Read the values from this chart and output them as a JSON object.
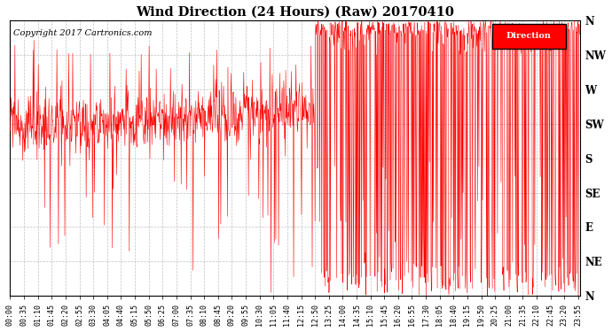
{
  "title": "Wind Direction (24 Hours) (Raw) 20170410",
  "copyright": "Copyright 2017 Cartronics.com",
  "legend_label": "Direction",
  "legend_bg": "#ff0000",
  "legend_text_color": "#ffffff",
  "line_color": "#ff0000",
  "background_color": "#ffffff",
  "grid_color": "#b0b0b0",
  "yticks_values": [
    360,
    315,
    270,
    225,
    180,
    135,
    90,
    45,
    0
  ],
  "yticks_labels": [
    "N",
    "NW",
    "W",
    "SW",
    "S",
    "SE",
    "E",
    "NE",
    "N"
  ],
  "ylim": [
    0,
    360
  ],
  "title_fontsize": 10.5,
  "copyright_fontsize": 7,
  "tick_fontsize": 6,
  "ytick_fontsize": 8.5,
  "xtick_interval_minutes": 35
}
